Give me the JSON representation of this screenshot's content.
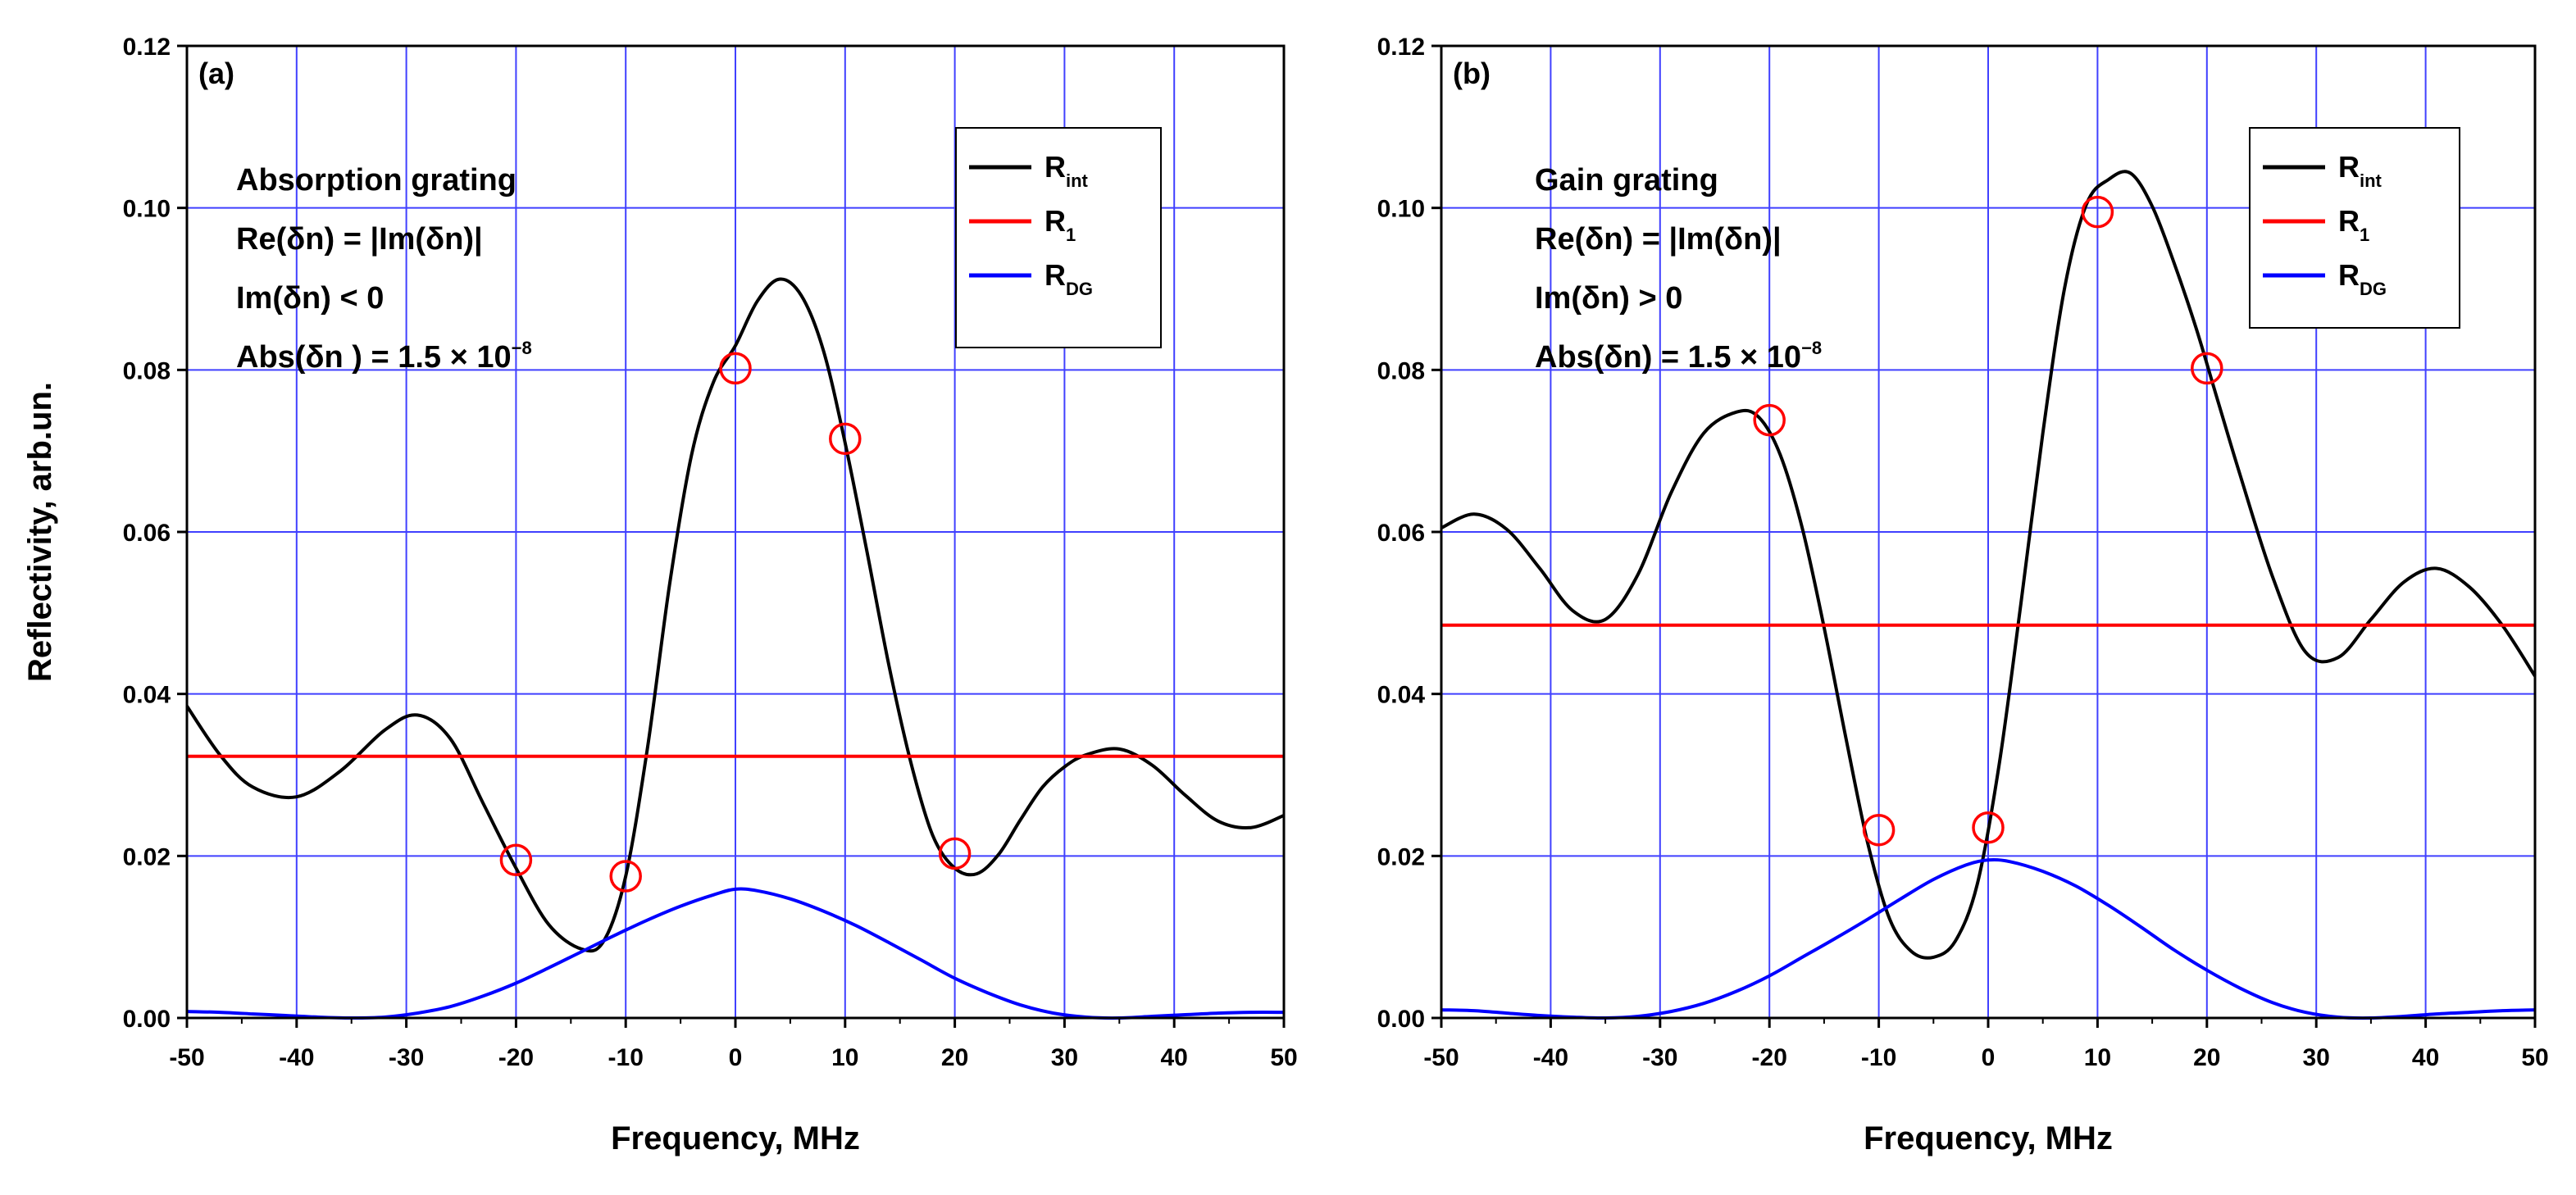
{
  "figure": {
    "ylabel": "Reflectivity, arb.un.",
    "xlabel": "Frequency, MHz",
    "colors": {
      "grid": "#4040ff",
      "R_int": "#000000",
      "R_1": "#ff0000",
      "R_DG": "#0000ff",
      "marker": "#ff0000"
    }
  },
  "chart_data": [
    {
      "type": "line",
      "panel_label": "(a)",
      "annotation": [
        "Absorption grating",
        "Re(δn) = |Im(δn)|",
        "Im(δn) < 0",
        "Abs(δn ) = 1.5 × 10",
        "−8"
      ],
      "xlabel": "Frequency, MHz",
      "ylabel": "Reflectivity, arb.un.",
      "xlim": [
        -50,
        50
      ],
      "ylim": [
        0,
        0.12
      ],
      "xticks": [
        "-50",
        "-40",
        "-30",
        "-20",
        "-10",
        "0",
        "10",
        "20",
        "30",
        "40",
        "50"
      ],
      "yticks": [
        "0.00",
        "0.02",
        "0.04",
        "0.06",
        "0.08",
        "0.10",
        "0.12"
      ],
      "grid": true,
      "legend": {
        "position": "top-right",
        "entries": [
          {
            "name": "R",
            "sub": "int",
            "color": "#000000"
          },
          {
            "name": "R",
            "sub": "1",
            "color": "#ff0000"
          },
          {
            "name": "R",
            "sub": "DG",
            "color": "#0000ff"
          }
        ]
      },
      "series": [
        {
          "name": "R_int",
          "color": "#000000",
          "x": [
            -50,
            -47,
            -44,
            -40,
            -36,
            -32,
            -29,
            -26,
            -23,
            -20,
            -17,
            -14,
            -12,
            -10,
            -8,
            -6,
            -4,
            -2,
            0,
            2,
            4,
            6,
            8,
            10,
            12,
            14,
            16,
            18,
            20,
            22,
            24,
            26,
            28,
            30,
            32,
            35,
            38,
            41,
            44,
            47,
            50
          ],
          "y": [
            0.0385,
            0.0325,
            0.0285,
            0.0273,
            0.0305,
            0.0355,
            0.0374,
            0.0345,
            0.0265,
            0.0185,
            0.0115,
            0.0085,
            0.0095,
            0.0175,
            0.0335,
            0.0535,
            0.0695,
            0.0785,
            0.083,
            0.0885,
            0.0912,
            0.0892,
            0.0825,
            0.071,
            0.0575,
            0.0435,
            0.0315,
            0.0225,
            0.0185,
            0.0178,
            0.0202,
            0.0245,
            0.0285,
            0.031,
            0.0325,
            0.0332,
            0.0312,
            0.0275,
            0.0243,
            0.0235,
            0.025
          ]
        },
        {
          "name": "R_1",
          "color": "#ff0000",
          "x": [
            -50,
            50
          ],
          "y": [
            0.0323,
            0.0323
          ]
        },
        {
          "name": "R_DG",
          "color": "#0000ff",
          "x": [
            -50,
            -47,
            -44,
            -41,
            -38,
            -35,
            -32,
            -29,
            -26,
            -23,
            -20,
            -17,
            -14,
            -11,
            -8,
            -5,
            -2,
            0,
            2,
            5,
            8,
            11,
            14,
            17,
            20,
            23,
            26,
            29,
            32,
            35,
            38,
            41,
            44,
            47,
            50
          ],
          "y": [
            0.0008,
            0.0007,
            0.0005,
            0.0003,
            0.0001,
            0.0,
            0.0001,
            0.0006,
            0.0014,
            0.0027,
            0.0043,
            0.0062,
            0.0082,
            0.0102,
            0.0121,
            0.0138,
            0.0152,
            0.0159,
            0.0157,
            0.0147,
            0.0132,
            0.0114,
            0.0093,
            0.0071,
            0.0049,
            0.0031,
            0.0016,
            0.0006,
            0.0001,
            0.0,
            0.0002,
            0.0004,
            0.0006,
            0.0007,
            0.0007
          ]
        }
      ],
      "markers": {
        "x": [
          -20,
          -10,
          0,
          10,
          20
        ],
        "y": [
          0.0195,
          0.0175,
          0.0802,
          0.0715,
          0.0203
        ]
      }
    },
    {
      "type": "line",
      "panel_label": "(b)",
      "annotation": [
        "Gain grating",
        "Re(δn) = |Im(δn)|",
        "Im(δn) > 0",
        "Abs(δn) = 1.5 × 10",
        "−8"
      ],
      "xlabel": "Frequency, MHz",
      "ylabel": "",
      "xlim": [
        -50,
        50
      ],
      "ylim": [
        0,
        0.12
      ],
      "xticks": [
        "-50",
        "-40",
        "-30",
        "-20",
        "-10",
        "0",
        "10",
        "20",
        "30",
        "40",
        "50"
      ],
      "yticks": [
        "0.00",
        "0.02",
        "0.04",
        "0.06",
        "0.08",
        "0.10",
        "0.12"
      ],
      "grid": true,
      "legend": {
        "position": "top-right",
        "entries": [
          {
            "name": "R",
            "sub": "int",
            "color": "#000000"
          },
          {
            "name": "R",
            "sub": "1",
            "color": "#ff0000"
          },
          {
            "name": "R",
            "sub": "DG",
            "color": "#0000ff"
          }
        ]
      },
      "series": [
        {
          "name": "R_int",
          "color": "#000000",
          "x": [
            -50,
            -47,
            -44,
            -41,
            -38,
            -35,
            -32,
            -29,
            -26,
            -23,
            -21,
            -19,
            -17,
            -15,
            -13,
            -11,
            -9,
            -7,
            -5,
            -3,
            -1,
            1,
            3,
            5,
            7,
            9,
            11,
            13,
            15,
            17,
            19,
            21,
            23,
            26,
            29,
            32,
            35,
            38,
            41,
            44,
            47,
            50
          ],
          "y": [
            0.0605,
            0.0622,
            0.0603,
            0.0555,
            0.0503,
            0.0492,
            0.0548,
            0.0648,
            0.0722,
            0.0748,
            0.0742,
            0.0695,
            0.0605,
            0.0482,
            0.0345,
            0.0215,
            0.0122,
            0.0082,
            0.0075,
            0.0095,
            0.0165,
            0.0312,
            0.0512,
            0.0722,
            0.0902,
            0.1005,
            0.1035,
            0.1043,
            0.1002,
            0.0932,
            0.0852,
            0.0762,
            0.0672,
            0.0545,
            0.0452,
            0.0445,
            0.0492,
            0.0538,
            0.0555,
            0.0532,
            0.0485,
            0.0422
          ]
        },
        {
          "name": "R_1",
          "color": "#ff0000",
          "x": [
            -50,
            50
          ],
          "y": [
            0.0485,
            0.0485
          ]
        },
        {
          "name": "R_DG",
          "color": "#0000ff",
          "x": [
            -50,
            -47,
            -44,
            -41,
            -38,
            -35,
            -32,
            -29,
            -26,
            -23,
            -20,
            -17,
            -14,
            -11,
            -8,
            -5,
            -2,
            0,
            2,
            5,
            8,
            11,
            14,
            17,
            20,
            23,
            26,
            29,
            32,
            35,
            38,
            41,
            44,
            47,
            50
          ],
          "y": [
            0.001,
            0.0009,
            0.0006,
            0.0003,
            0.0001,
            0.0,
            0.0002,
            0.0008,
            0.0018,
            0.0033,
            0.0052,
            0.0075,
            0.0098,
            0.0122,
            0.0147,
            0.0171,
            0.0189,
            0.0195,
            0.0193,
            0.0181,
            0.0163,
            0.0139,
            0.0112,
            0.0084,
            0.0059,
            0.0037,
            0.0019,
            0.0007,
            0.0001,
            0.0,
            0.0002,
            0.0005,
            0.0007,
            0.0009,
            0.001
          ]
        }
      ],
      "markers": {
        "x": [
          -20,
          -10,
          0,
          10,
          20
        ],
        "y": [
          0.0738,
          0.0232,
          0.0235,
          0.0995,
          0.0802
        ]
      }
    }
  ]
}
